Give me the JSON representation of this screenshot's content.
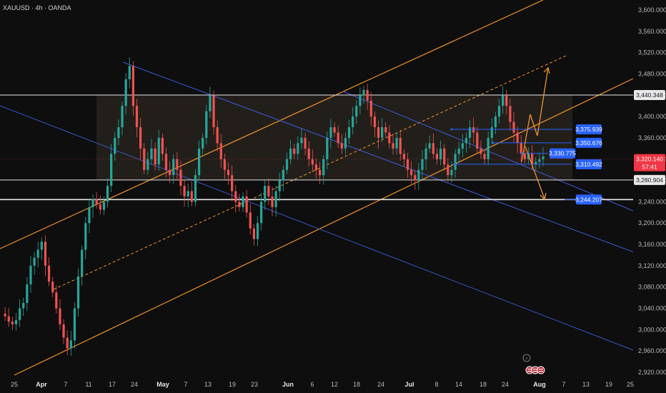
{
  "header": {
    "symbol": "XAUUSD · 4h · OANDA"
  },
  "colors": {
    "background": "#0e0e0e",
    "up": "#26a69a",
    "down": "#ef5350",
    "orange_channel": "#f0932b",
    "blue_channel": "#3f5bd6",
    "range_box": "#2a2620",
    "white_line": "#e8e8e8",
    "tag_blue": "#2962ff",
    "tag_red": "#f23645"
  },
  "chart_data": {
    "type": "candlestick",
    "title": "",
    "ylim": [
      2900,
      3620
    ],
    "y_ticks": [
      "3,600.000",
      "3,560.000",
      "3,520.000",
      "3,480.000",
      "3,440.000",
      "3,400.000",
      "3,360.000",
      "3,320.000",
      "3,280.000",
      "3,240.000",
      "3,200.000",
      "3,160.000",
      "3,120.000",
      "3,080.000",
      "3,040.000",
      "3,000.000",
      "2,960.000",
      "2,920.000"
    ],
    "x_ticks": [
      {
        "label": "25",
        "month": false
      },
      {
        "label": "Apr",
        "month": true
      },
      {
        "label": "7",
        "month": false
      },
      {
        "label": "11",
        "month": false
      },
      {
        "label": "17",
        "month": false
      },
      {
        "label": "24",
        "month": false
      },
      {
        "label": "May",
        "month": true
      },
      {
        "label": "7",
        "month": false
      },
      {
        "label": "13",
        "month": false
      },
      {
        "label": "19",
        "month": false
      },
      {
        "label": "23",
        "month": false
      },
      {
        "label": "Jun",
        "month": true
      },
      {
        "label": "6",
        "month": false
      },
      {
        "label": "12",
        "month": false
      },
      {
        "label": "18",
        "month": false
      },
      {
        "label": "24",
        "month": false
      },
      {
        "label": "Jul",
        "month": true
      },
      {
        "label": "8",
        "month": false
      },
      {
        "label": "14",
        "month": false
      },
      {
        "label": "18",
        "month": false
      },
      {
        "label": "24",
        "month": false
      },
      {
        "label": "Aug",
        "month": true
      },
      {
        "label": "7",
        "month": false
      },
      {
        "label": "13",
        "month": false
      },
      {
        "label": "19",
        "month": false
      },
      {
        "label": "25",
        "month": false
      }
    ],
    "price_path": [
      3030,
      3025,
      3015,
      3010,
      3018,
      3040,
      3050,
      3085,
      3120,
      3135,
      3150,
      3165,
      3120,
      3090,
      3070,
      3040,
      3010,
      2985,
      2965,
      2980,
      3040,
      3100,
      3150,
      3200,
      3230,
      3245,
      3235,
      3225,
      3240,
      3270,
      3330,
      3360,
      3380,
      3420,
      3470,
      3495,
      3420,
      3380,
      3340,
      3300,
      3320,
      3340,
      3310,
      3360,
      3330,
      3300,
      3290,
      3320,
      3300,
      3270,
      3250,
      3260,
      3240,
      3290,
      3340,
      3360,
      3410,
      3440,
      3380,
      3350,
      3320,
      3300,
      3290,
      3260,
      3240,
      3230,
      3250,
      3220,
      3190,
      3170,
      3200,
      3240,
      3270,
      3250,
      3230,
      3260,
      3280,
      3300,
      3320,
      3340,
      3330,
      3350,
      3360,
      3340,
      3320,
      3310,
      3300,
      3290,
      3320,
      3360,
      3380,
      3370,
      3350,
      3340,
      3360,
      3380,
      3400,
      3420,
      3440,
      3450,
      3430,
      3400,
      3380,
      3360,
      3380,
      3370,
      3350,
      3340,
      3360,
      3330,
      3320,
      3300,
      3290,
      3280,
      3300,
      3320,
      3340,
      3350,
      3330,
      3320,
      3340,
      3310,
      3290,
      3300,
      3330,
      3340,
      3350,
      3360,
      3380,
      3370,
      3340,
      3330,
      3320,
      3360,
      3380,
      3400,
      3420,
      3440,
      3420,
      3390,
      3370,
      3350,
      3330,
      3320,
      3330,
      3310,
      3315,
      3320,
      3325
    ],
    "horizontal_levels": [
      {
        "value": 3440.348,
        "label": "3,440.348"
      },
      {
        "value": 3280.904,
        "label": "3,280.904"
      },
      {
        "value": 3244.207,
        "label": "3,244.207"
      }
    ],
    "range_box": {
      "top": 3440.348,
      "bottom": 3280.904
    },
    "target_levels": [
      {
        "value": 3375.939,
        "label": "3,375.939"
      },
      {
        "value": 3350.676,
        "label": "3,350.676"
      },
      {
        "value": 3330.775,
        "label": "3,330.775"
      },
      {
        "value": 3310.492,
        "label": "3,310.492"
      }
    ],
    "current_price": {
      "value": 3320.14,
      "label": "3,320.140",
      "countdown": "57:41"
    },
    "bottom_badges": [
      "⚡",
      "🇺🇸🇺🇸🇺🇸"
    ]
  }
}
